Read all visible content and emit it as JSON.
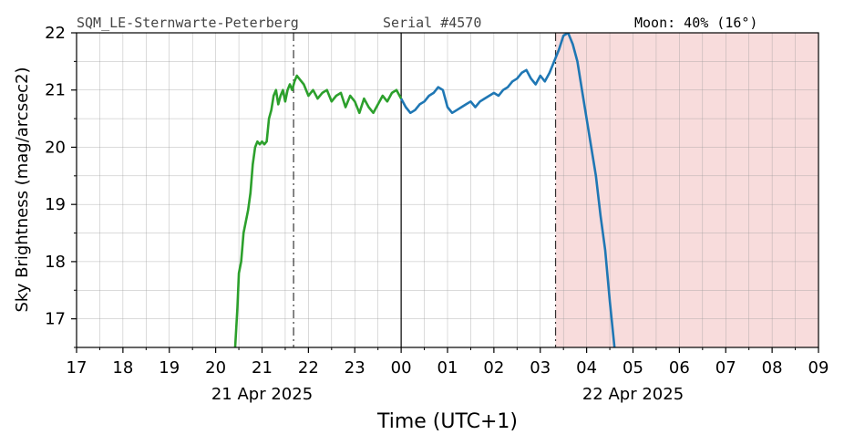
{
  "header": {
    "station": "SQM_LE-Sternwarte-Peterberg",
    "serial": "Serial #4570",
    "moon": "Moon: 40% (16°)"
  },
  "chart_data": {
    "type": "line",
    "title": "",
    "xlabel": "Time (UTC+1)",
    "ylabel": "Sky Brightness (mag/arcsec2)",
    "xlim": [
      17,
      33
    ],
    "ylim": [
      16.5,
      22
    ],
    "x_ticks": [
      "17",
      "18",
      "19",
      "20",
      "21",
      "22",
      "23",
      "00",
      "01",
      "02",
      "03",
      "04",
      "05",
      "06",
      "07",
      "08",
      "09"
    ],
    "y_ticks": [
      17,
      18,
      19,
      20,
      21,
      22
    ],
    "date_labels": [
      {
        "x": 21,
        "text": "21 Apr 2025"
      },
      {
        "x": 29,
        "text": "22 Apr 2025"
      }
    ],
    "grid": true,
    "colors": {
      "evening": "#2ca02c",
      "morning": "#1f77b4",
      "daylight_shade": "#f8dcdc"
    },
    "vlines": [
      {
        "x": 21.68,
        "style": "dashdot",
        "meaning": "astronomical dusk"
      },
      {
        "x": 24.0,
        "style": "solid",
        "meaning": "midnight"
      },
      {
        "x": 27.33,
        "style": "dashdot",
        "meaning": "astronomical dawn"
      }
    ],
    "shaded_region": [
      27.33,
      33
    ],
    "series": [
      {
        "segment": "evening",
        "x": [
          20.42,
          20.47,
          20.5,
          20.55,
          20.6,
          20.65,
          20.7,
          20.75,
          20.8,
          20.85,
          20.9,
          20.95,
          21.0,
          21.05,
          21.1,
          21.15,
          21.2,
          21.25,
          21.3,
          21.35,
          21.4,
          21.45,
          21.5,
          21.55,
          21.6,
          21.65,
          21.7,
          21.75,
          21.8,
          21.9,
          22.0,
          22.1,
          22.2,
          22.3,
          22.4,
          22.5,
          22.6,
          22.7,
          22.8,
          22.9,
          23.0,
          23.1,
          23.2,
          23.3,
          23.4,
          23.5,
          23.6,
          23.7,
          23.8,
          23.9,
          24.0
        ],
        "y": [
          16.5,
          17.2,
          17.8,
          18.0,
          18.5,
          18.7,
          18.9,
          19.2,
          19.7,
          20.0,
          20.1,
          20.05,
          20.1,
          20.05,
          20.1,
          20.5,
          20.65,
          20.9,
          21.0,
          20.75,
          20.9,
          21.0,
          20.8,
          21.0,
          21.1,
          21.0,
          21.15,
          21.25,
          21.2,
          21.1,
          20.9,
          21.0,
          20.85,
          20.95,
          21.0,
          20.8,
          20.9,
          20.95,
          20.7,
          20.9,
          20.8,
          20.6,
          20.85,
          20.7,
          20.6,
          20.75,
          20.9,
          20.8,
          20.95,
          21.0,
          20.85
        ]
      },
      {
        "segment": "morning",
        "x": [
          24.0,
          24.1,
          24.2,
          24.3,
          24.4,
          24.5,
          24.6,
          24.7,
          24.8,
          24.9,
          25.0,
          25.1,
          25.2,
          25.3,
          25.4,
          25.5,
          25.6,
          25.7,
          25.8,
          25.9,
          26.0,
          26.1,
          26.2,
          26.3,
          26.4,
          26.5,
          26.6,
          26.7,
          26.8,
          26.9,
          27.0,
          27.1,
          27.2,
          27.3,
          27.4,
          27.5,
          27.6,
          27.7,
          27.8,
          27.9,
          28.0,
          28.1,
          28.2,
          28.3,
          28.4,
          28.5,
          28.6
        ],
        "y": [
          20.85,
          20.7,
          20.6,
          20.65,
          20.75,
          20.8,
          20.9,
          20.95,
          21.05,
          21.0,
          20.7,
          20.6,
          20.65,
          20.7,
          20.75,
          20.8,
          20.7,
          20.8,
          20.85,
          20.9,
          20.95,
          20.9,
          21.0,
          21.05,
          21.15,
          21.2,
          21.3,
          21.35,
          21.2,
          21.1,
          21.25,
          21.15,
          21.3,
          21.5,
          21.7,
          21.95,
          22.0,
          21.8,
          21.5,
          21.0,
          20.5,
          20.0,
          19.5,
          18.8,
          18.2,
          17.3,
          16.5
        ]
      }
    ]
  }
}
